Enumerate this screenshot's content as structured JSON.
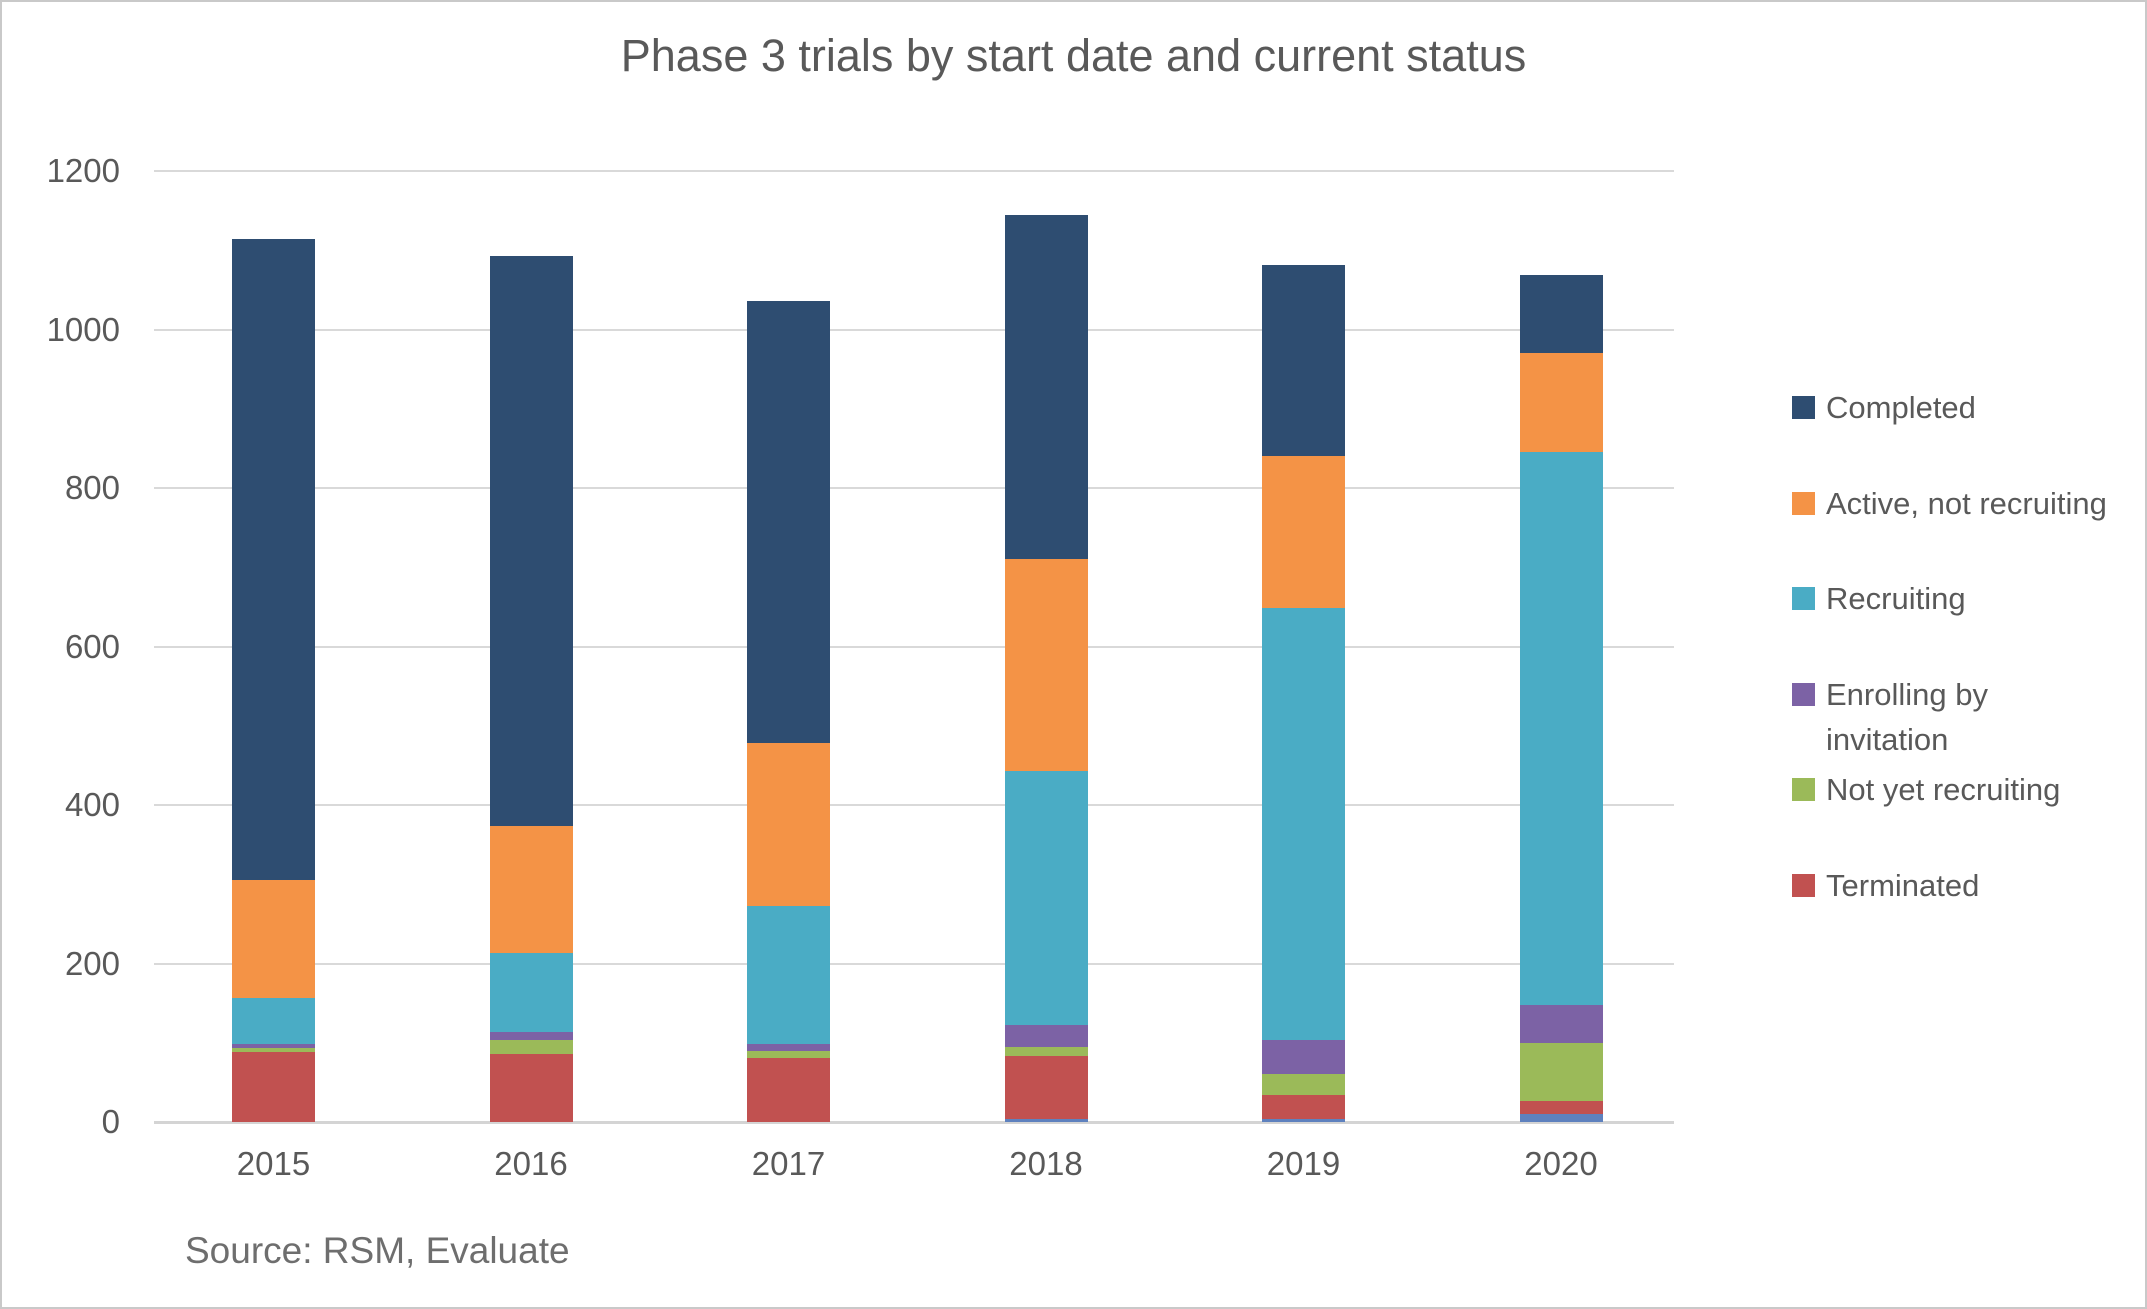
{
  "page": {
    "title": "Phase 3 trials by start date and current status",
    "source_note": "Source: RSM, Evaluate"
  },
  "chart_data": {
    "type": "bar",
    "stacked": true,
    "title": "Phase 3 trials by start date and current status",
    "xlabel": "",
    "ylabel": "",
    "ylim": [
      0,
      1200
    ],
    "yticks": [
      0,
      200,
      400,
      600,
      800,
      1000,
      1200
    ],
    "grid": true,
    "categories": [
      "2015",
      "2016",
      "2017",
      "2018",
      "2019",
      "2020"
    ],
    "series": [
      {
        "name": "unlabeled-blue-sliver",
        "color": "#5e81be",
        "in_legend": false,
        "values": [
          0,
          0,
          0,
          4,
          4,
          10
        ]
      },
      {
        "name": "Terminated",
        "color": "#c15150",
        "in_legend": true,
        "values": [
          88,
          86,
          81,
          79,
          30,
          16
        ]
      },
      {
        "name": "Not yet recruiting",
        "color": "#9bba59",
        "in_legend": true,
        "values": [
          5,
          17,
          9,
          12,
          27,
          74
        ]
      },
      {
        "name": "Enrolling by invitation",
        "color": "#7c62a5",
        "in_legend": true,
        "values": [
          6,
          10,
          8,
          28,
          42,
          48
        ]
      },
      {
        "name": "Recruiting",
        "color": "#4aacc5",
        "in_legend": true,
        "values": [
          57,
          100,
          175,
          320,
          545,
          698
        ]
      },
      {
        "name": "Active, not recruiting",
        "color": "#f49346",
        "in_legend": true,
        "values": [
          150,
          161,
          205,
          267,
          192,
          124
        ]
      },
      {
        "name": "Completed",
        "color": "#2e4d71",
        "in_legend": true,
        "values": [
          808,
          719,
          558,
          434,
          242,
          99
        ]
      }
    ],
    "totals": [
      1114,
      1093,
      1036,
      1144,
      1082,
      1069
    ],
    "legend": {
      "position": "right",
      "items": [
        {
          "label": "Completed",
          "series": "Completed"
        },
        {
          "label": "Active, not recruiting",
          "series": "Active, not recruiting"
        },
        {
          "label": "Recruiting",
          "series": "Recruiting"
        },
        {
          "label": "Enrolling by invitation",
          "series": "Enrolling by invitation"
        },
        {
          "label": "Not yet recruiting",
          "series": "Not yet recruiting"
        },
        {
          "label": "Terminated",
          "series": "Terminated"
        }
      ]
    },
    "source": "Source: RSM, Evaluate",
    "colors": {
      "gridline": "#d9d9d9",
      "axis_text": "#595959",
      "title_text": "#595959",
      "source_text": "#6e6e6e"
    }
  }
}
